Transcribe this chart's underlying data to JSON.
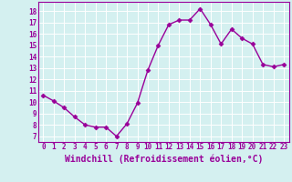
{
  "x": [
    0,
    1,
    2,
    3,
    4,
    5,
    6,
    7,
    8,
    9,
    10,
    11,
    12,
    13,
    14,
    15,
    16,
    17,
    18,
    19,
    20,
    21,
    22,
    23
  ],
  "y": [
    10.6,
    10.1,
    9.5,
    8.7,
    8.0,
    7.8,
    7.8,
    7.0,
    8.1,
    9.9,
    12.8,
    15.0,
    16.8,
    17.2,
    17.2,
    18.2,
    16.8,
    15.1,
    16.4,
    15.6,
    15.1,
    13.3,
    13.1,
    13.3
  ],
  "line_color": "#990099",
  "marker": "D",
  "markersize": 2.5,
  "linewidth": 1.0,
  "xlabel": "Windchill (Refroidissement éolien,°C)",
  "xlabel_fontsize": 7,
  "ylabel_ticks": [
    7,
    8,
    9,
    10,
    11,
    12,
    13,
    14,
    15,
    16,
    17,
    18
  ],
  "xlabel_ticks": [
    0,
    1,
    2,
    3,
    4,
    5,
    6,
    7,
    8,
    9,
    10,
    11,
    12,
    13,
    14,
    15,
    16,
    17,
    18,
    19,
    20,
    21,
    22,
    23
  ],
  "ylim": [
    6.5,
    18.8
  ],
  "xlim": [
    -0.5,
    23.5
  ],
  "background_color": "#d4f0f0",
  "grid_color": "#b0d8d8",
  "tick_color": "#990099",
  "tick_fontsize": 5.5,
  "xlabel_color": "#990099",
  "spine_color": "#990099"
}
